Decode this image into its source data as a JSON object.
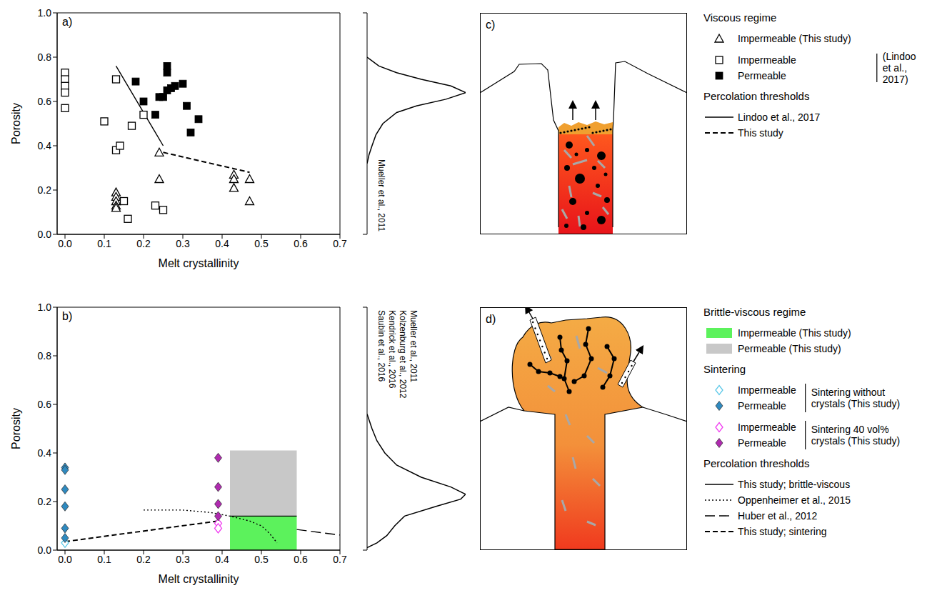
{
  "chart_data": [
    {
      "type": "scatter",
      "panel": "a)",
      "x_label": "Melt crystallinity",
      "y_label": "Porosity",
      "xlim": [
        -0.02,
        0.7
      ],
      "xticks": [
        {
          "value": 0,
          "label": "0.0"
        },
        0.1,
        0.2,
        0.3,
        0.4,
        0.5,
        0.6,
        0.7
      ],
      "ylim": [
        0,
        1
      ],
      "yticks": [
        {
          "value": 0,
          "label": "0.0"
        },
        0.2,
        0.4,
        0.6,
        0.8,
        {
          "value": 1,
          "label": "1.0"
        }
      ],
      "series": [
        {
          "name": "Impermeable (This study)",
          "type": "scatter",
          "marker": "triangle-open",
          "color": "#000000",
          "x": [
            0.13,
            0.13,
            0.13,
            0.13,
            0.13,
            0.24,
            0.24,
            0.43,
            0.43,
            0.43,
            0.47,
            0.47
          ],
          "y": [
            0.19,
            0.17,
            0.15,
            0.13,
            0.12,
            0.37,
            0.25,
            0.27,
            0.25,
            0.21,
            0.25,
            0.15
          ]
        },
        {
          "name": "Impermeable",
          "type": "scatter",
          "marker": "square-open",
          "color": "#000000",
          "x": [
            0,
            0,
            0,
            0,
            0,
            0.13,
            0.1,
            0.17,
            0.2,
            0.13,
            0.14,
            0.15,
            0.16,
            0.23,
            0.25
          ],
          "y": [
            0.73,
            0.7,
            0.67,
            0.64,
            0.57,
            0.7,
            0.51,
            0.49,
            0.54,
            0.38,
            0.4,
            0.15,
            0.07,
            0.13,
            0.11
          ]
        },
        {
          "name": "Permeable",
          "type": "scatter",
          "marker": "square-filled",
          "color": "#000000",
          "x": [
            0.18,
            0.2,
            0.23,
            0.24,
            0.25,
            0.26,
            0.26,
            0.26,
            0.27,
            0.28,
            0.3,
            0.31,
            0.32,
            0.34
          ],
          "y": [
            0.69,
            0.6,
            0.54,
            0.62,
            0.62,
            0.76,
            0.73,
            0.65,
            0.66,
            0.67,
            0.68,
            0.58,
            0.46,
            0.52
          ]
        },
        {
          "name": "Lindoo et al., 2017",
          "type": "line",
          "line_style": "solid",
          "color": "#000000",
          "x": [
            0.13,
            0.23,
            0.25
          ],
          "y": [
            0.76,
            0.46,
            0.4
          ]
        },
        {
          "name": "This study",
          "type": "line",
          "line_style": "dashed",
          "color": "#000000",
          "x": [
            0.25,
            0.47
          ],
          "y": [
            0.37,
            0.28
          ]
        }
      ]
    },
    {
      "type": "scatter",
      "panel": "b)",
      "x_label": "Melt crystallinity",
      "y_label": "Porosity",
      "xlim": [
        -0.02,
        0.7
      ],
      "xticks": [
        {
          "value": 0,
          "label": "0.0"
        },
        0.1,
        0.2,
        0.3,
        0.4,
        0.5,
        0.6,
        0.7
      ],
      "ylim": [
        0,
        1
      ],
      "yticks": [
        {
          "value": 0,
          "label": "0.0"
        },
        0.2,
        0.4,
        0.6,
        0.8,
        {
          "value": 1,
          "label": "1.0"
        }
      ],
      "series": [
        {
          "name": "Impermeable (This study)",
          "type": "rect",
          "color": "#5cf25c",
          "x": [
            0.42,
            0.59
          ],
          "y": [
            0,
            0.14
          ]
        },
        {
          "name": "Permeable (This study)",
          "type": "rect",
          "color": "#c8c8c8",
          "x": [
            0.42,
            0.59
          ],
          "y": [
            0.14,
            0.41
          ]
        },
        {
          "name": "Impermeable",
          "type": "scatter",
          "marker": "diamond-open",
          "color": "#5bc8e8",
          "x": [
            0
          ],
          "y": [
            0.03
          ]
        },
        {
          "name": "Permeable",
          "type": "scatter",
          "marker": "diamond-filled",
          "color": "#2f8ac0",
          "x": [
            0,
            0,
            0,
            0,
            0,
            0
          ],
          "y": [
            0.34,
            0.33,
            0.25,
            0.18,
            0.09,
            0.05
          ]
        },
        {
          "name": "Impermeable",
          "type": "scatter",
          "marker": "diamond-open",
          "color": "#f03cf0",
          "x": [
            0.39,
            0.39
          ],
          "y": [
            0.11,
            0.09
          ]
        },
        {
          "name": "Permeable",
          "type": "scatter",
          "marker": "diamond-filled",
          "color": "#b02ab0",
          "x": [
            0.39,
            0.39,
            0.39,
            0.39
          ],
          "y": [
            0.38,
            0.26,
            0.19,
            0.14
          ]
        },
        {
          "name": "This study; brittle-viscous",
          "type": "line",
          "line_style": "solid",
          "color": "#000000",
          "x": [
            0.42,
            0.59
          ],
          "y": [
            0.14,
            0.14
          ]
        },
        {
          "name": "Oppenheimer et al., 2015",
          "type": "line",
          "line_style": "dotted",
          "color": "#000000",
          "x": [
            0.2,
            0.3,
            0.37,
            0.42,
            0.47,
            0.5,
            0.52,
            0.54
          ],
          "y": [
            0.165,
            0.165,
            0.155,
            0.14,
            0.12,
            0.1,
            0.07,
            0.03
          ]
        },
        {
          "name": "Huber et al., 2012",
          "type": "line",
          "line_style": "longdash",
          "color": "#000000",
          "x": [
            0.59,
            0.7
          ],
          "y": [
            0.085,
            0.062
          ]
        },
        {
          "name": "This study; sintering",
          "type": "line",
          "line_style": "dashed",
          "color": "#000000",
          "x": [
            0,
            0.39
          ],
          "y": [
            0.035,
            0.12
          ]
        }
      ]
    },
    {
      "type": "line",
      "annotations": [
        "Mueller et al., 2011"
      ],
      "xlim": [
        0,
        1
      ],
      "ylim": [
        0,
        1
      ],
      "tick_labels": false,
      "series": [
        {
          "color": "#000000",
          "x": [
            0,
            0.02,
            0.05,
            0.09,
            0.16,
            0.3,
            0.5,
            0.8,
            1.0,
            0.85,
            0.55,
            0.3,
            0.12,
            0.03,
            0
          ],
          "y": [
            0.32,
            0.36,
            0.4,
            0.45,
            0.5,
            0.55,
            0.58,
            0.61,
            0.64,
            0.67,
            0.7,
            0.73,
            0.76,
            0.79,
            0.8
          ]
        }
      ]
    },
    {
      "type": "line",
      "annotations": [
        "Mueller et al., 2011",
        "Kolzenburg et al., 2012",
        "Kendrick et al., 2016",
        "Saubin et al., 2016"
      ],
      "xlim": [
        0,
        1
      ],
      "ylim": [
        0,
        1
      ],
      "tick_labels": false,
      "series": [
        {
          "color": "#000000",
          "x": [
            0,
            0.1,
            0.2,
            0.28,
            0.38,
            0.7,
            0.95,
            1.0,
            0.85,
            0.55,
            0.3,
            0.18,
            0.1,
            0.05,
            0
          ],
          "y": [
            0.01,
            0.03,
            0.06,
            0.1,
            0.14,
            0.18,
            0.21,
            0.23,
            0.26,
            0.3,
            0.35,
            0.4,
            0.45,
            0.5,
            0.56
          ]
        }
      ]
    }
  ],
  "diagrams": [
    {
      "panel": "c)"
    },
    {
      "panel": "d)"
    }
  ],
  "legend_panel": {
    "groups": [
      {
        "title": "Viscous regime",
        "entries": [
          [
            0,
            0
          ],
          [
            0,
            1
          ],
          [
            0,
            2
          ]
        ],
        "brackets": [
          {
            "entries": [
              1,
              2
            ],
            "label": "(Lindoo et al., 2017)"
          }
        ]
      },
      {
        "title": "Percolation thresholds",
        "entries": [
          [
            0,
            3
          ],
          [
            0,
            4
          ]
        ]
      },
      {
        "title": "Brittle-viscous regime",
        "entries": [
          [
            1,
            0
          ],
          [
            1,
            1
          ]
        ]
      },
      {
        "title": "Sintering",
        "entries": [
          [
            1,
            2
          ],
          [
            1,
            3
          ],
          [
            1,
            4
          ],
          [
            1,
            5
          ]
        ],
        "brackets": [
          {
            "entries": [
              0,
              1
            ],
            "label": "Sintering without crystals (This study)"
          },
          {
            "entries": [
              2,
              3
            ],
            "label": "Sintering 40 vol% crystals (This study)"
          }
        ]
      },
      {
        "title": "Percolation thresholds",
        "entries": [
          [
            1,
            6
          ],
          [
            1,
            7
          ],
          [
            1,
            8
          ],
          [
            1,
            9
          ]
        ]
      }
    ]
  }
}
